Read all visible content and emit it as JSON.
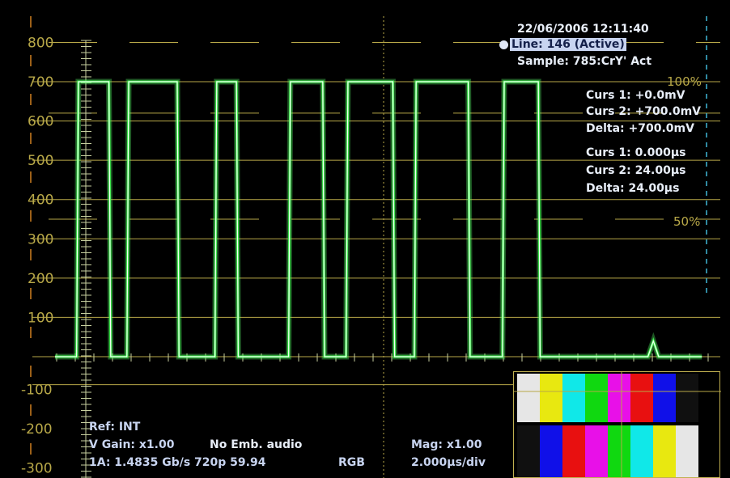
{
  "header": {
    "timestamp": "22/06/2006 12:11:40",
    "line_info": "Line: 146 (Active)",
    "sample_info": "Sample:  785:CrY' Act"
  },
  "cursors": {
    "voltage": {
      "curs1": "Curs 1: +0.0mV",
      "curs2": "Curs 2: +700.0mV",
      "delta": "Delta:  +700.0mV"
    },
    "time": {
      "curs1": "Curs 1: 0.000µs",
      "curs2": "Curs 2: 24.00µs",
      "delta": "Delta: 24.00µs"
    }
  },
  "graticule": {
    "y_labels": [
      "800",
      "700",
      "600",
      "500",
      "400",
      "300",
      "200",
      "100"
    ],
    "neg_labels": [
      "-100",
      "-200",
      "-300"
    ],
    "percent_100": "100%",
    "percent_50": "50%"
  },
  "status": {
    "ref": "Ref: INT",
    "v_gain": "V Gain:  x1.00",
    "audio": "No Emb. audio",
    "input": "1A: 1.4835 Gb/s 720p 59.94",
    "color_space": "RGB",
    "mag": "Mag:  x1.00",
    "timebase": "2.000µs/div"
  },
  "colors": {
    "trace": "#3cf04c",
    "graticule": "#b8a848",
    "cursor_v": "#d08020",
    "cursor_t": "#40b8d8",
    "text": "#e8eef8"
  },
  "thumbnail": {
    "top_bars": [
      "#e6e6e6",
      "#e8e810",
      "#10e8e8",
      "#10d810",
      "#e810e8",
      "#e81010",
      "#1010e8",
      "#101010"
    ],
    "bottom_bars": [
      "#101010",
      "#1010e8",
      "#e81010",
      "#e810e8",
      "#10d810",
      "#10e8e8",
      "#e8e810",
      "#e6e6e6"
    ]
  },
  "chart_data": {
    "type": "line",
    "series": [
      {
        "x_us": [
          0,
          1.2,
          1.3,
          3.0,
          3.1,
          4.0,
          4.1,
          6.8,
          6.9,
          8.9,
          9.0,
          10.1,
          10.2,
          13.0,
          13.1,
          14.9,
          15.0,
          16.2,
          16.3,
          18.8,
          18.9,
          20.0,
          20.1,
          23.0,
          23.1,
          24.9,
          25.0,
          26.9,
          27.0,
          29.0,
          29.1,
          33.0,
          33.3,
          33.6,
          36.0
        ],
        "mv": [
          0,
          0,
          700,
          700,
          0,
          0,
          700,
          700,
          0,
          0,
          700,
          700,
          0,
          0,
          700,
          700,
          0,
          0,
          700,
          700,
          0,
          0,
          700,
          700,
          0,
          0,
          700,
          700,
          0,
          0,
          0,
          0,
          40,
          0,
          0
        ]
      }
    ],
    "ylim": [
      -300,
      800
    ],
    "xlim": [
      0,
      36
    ]
  }
}
